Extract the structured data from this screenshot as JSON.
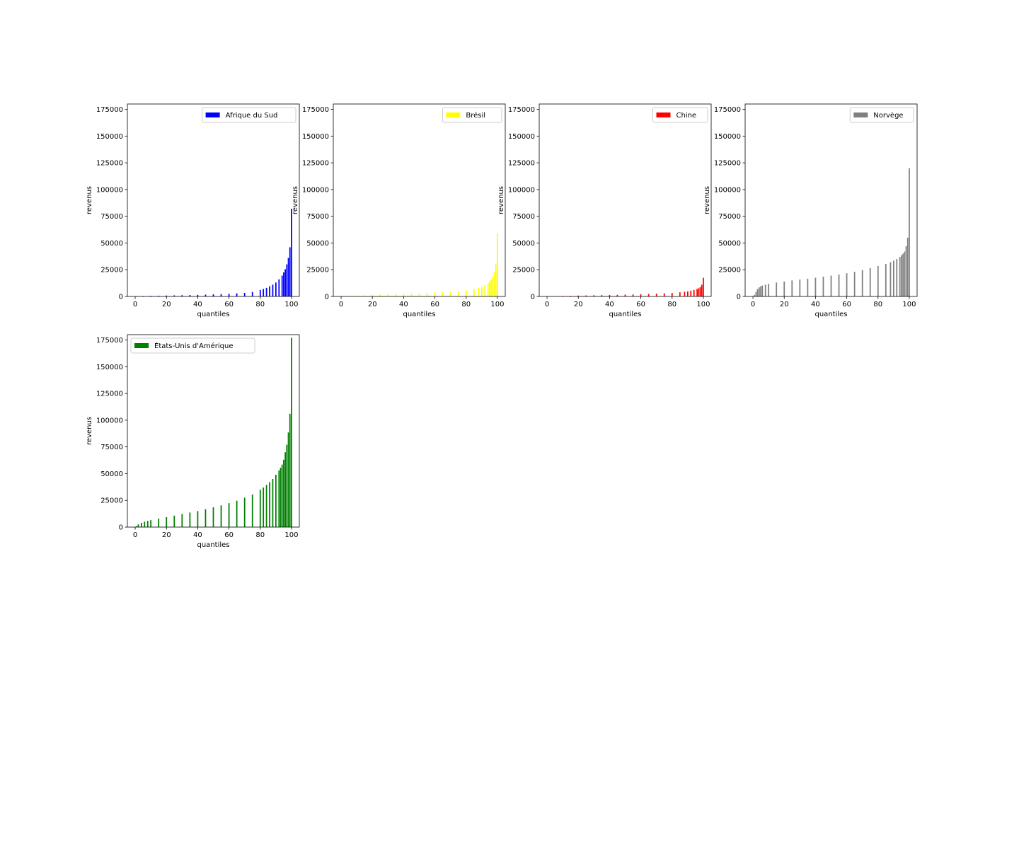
{
  "chart_data": [
    {
      "type": "bar",
      "legend": "Afrique du Sud",
      "color": "#0000ff",
      "xlabel": "quantiles",
      "ylabel": "revenus",
      "xlim": [
        -5,
        105
      ],
      "ylim": [
        0,
        180000
      ],
      "xticks": [
        "0",
        "20",
        "40",
        "60",
        "80",
        "100"
      ],
      "yticks": [
        "0",
        "25000",
        "50000",
        "75000",
        "100000",
        "125000",
        "150000",
        "175000"
      ],
      "legend_position": "top-right",
      "x": [
        1,
        5,
        10,
        15,
        20,
        25,
        30,
        35,
        40,
        45,
        50,
        55,
        60,
        65,
        70,
        75,
        80,
        82,
        84,
        86,
        88,
        90,
        92,
        94,
        95,
        96,
        97,
        98,
        99,
        100
      ],
      "values": [
        300,
        450,
        600,
        700,
        850,
        1000,
        1150,
        1300,
        1500,
        1700,
        1950,
        2200,
        2500,
        2900,
        3300,
        4200,
        6000,
        7000,
        8000,
        9500,
        11000,
        13000,
        16000,
        19500,
        22500,
        25500,
        30000,
        36000,
        46000,
        82000
      ]
    },
    {
      "type": "bar",
      "legend": "Brésil",
      "color": "#ffff00",
      "xlabel": "quantiles",
      "ylabel": "revenus",
      "xlim": [
        -5,
        105
      ],
      "ylim": [
        0,
        180000
      ],
      "xticks": [
        "0",
        "20",
        "40",
        "60",
        "80",
        "100"
      ],
      "yticks": [
        "0",
        "25000",
        "50000",
        "75000",
        "100000",
        "125000",
        "150000",
        "175000"
      ],
      "legend_position": "top-right",
      "x": [
        1,
        5,
        10,
        15,
        20,
        25,
        30,
        35,
        40,
        45,
        50,
        55,
        60,
        65,
        70,
        75,
        80,
        85,
        88,
        90,
        92,
        94,
        95,
        96,
        97,
        98,
        99,
        100
      ],
      "values": [
        200,
        500,
        800,
        1100,
        1400,
        1700,
        1950,
        2200,
        2450,
        2700,
        3000,
        3300,
        3650,
        4050,
        4500,
        5100,
        5900,
        7000,
        8000,
        9000,
        10500,
        12500,
        14000,
        16000,
        18500,
        22500,
        30000,
        59000
      ]
    },
    {
      "type": "bar",
      "legend": "Chine",
      "color": "#ff0000",
      "xlabel": "quantiles",
      "ylabel": "revenus",
      "xlim": [
        -5,
        105
      ],
      "ylim": [
        0,
        180000
      ],
      "xticks": [
        "0",
        "20",
        "40",
        "60",
        "80",
        "100"
      ],
      "yticks": [
        "0",
        "25000",
        "50000",
        "75000",
        "100000",
        "125000",
        "150000",
        "175000"
      ],
      "legend_position": "top-right",
      "x": [
        1,
        5,
        10,
        15,
        20,
        25,
        30,
        35,
        40,
        45,
        50,
        55,
        60,
        65,
        70,
        75,
        80,
        85,
        88,
        90,
        92,
        94,
        96,
        97,
        98,
        99,
        100
      ],
      "values": [
        200,
        350,
        500,
        650,
        800,
        950,
        1100,
        1250,
        1400,
        1550,
        1700,
        1900,
        2100,
        2350,
        2600,
        2900,
        3300,
        3900,
        4400,
        4800,
        5400,
        6100,
        7000,
        7700,
        8600,
        11000,
        17500
      ]
    },
    {
      "type": "bar",
      "legend": "Norvège",
      "color": "#808080",
      "xlabel": "quantiles",
      "ylabel": "revenus",
      "xlim": [
        -5,
        105
      ],
      "ylim": [
        0,
        180000
      ],
      "xticks": [
        "0",
        "20",
        "40",
        "60",
        "80",
        "100"
      ],
      "yticks": [
        "0",
        "25000",
        "50000",
        "75000",
        "100000",
        "125000",
        "150000",
        "175000"
      ],
      "legend_position": "top-right",
      "x": [
        1,
        2,
        3,
        4,
        5,
        6,
        8,
        10,
        15,
        20,
        25,
        30,
        35,
        40,
        45,
        50,
        55,
        60,
        65,
        70,
        75,
        80,
        85,
        88,
        90,
        92,
        94,
        95,
        96,
        97,
        98,
        99,
        100
      ],
      "values": [
        1500,
        4500,
        7000,
        8500,
        9500,
        10200,
        11000,
        11800,
        13000,
        14000,
        15000,
        15800,
        16600,
        17500,
        18500,
        19500,
        20500,
        21700,
        23000,
        24700,
        26500,
        28500,
        30500,
        32000,
        33500,
        35000,
        37000,
        38500,
        40000,
        42000,
        47000,
        55000,
        120000
      ]
    },
    {
      "type": "bar",
      "legend": "États-Unis d'Amérique",
      "color": "#008000",
      "xlabel": "quantiles",
      "ylabel": "revenus",
      "xlim": [
        -5,
        105
      ],
      "ylim": [
        0,
        180000
      ],
      "xticks": [
        "0",
        "20",
        "40",
        "60",
        "80",
        "100"
      ],
      "yticks": [
        "0",
        "25000",
        "50000",
        "75000",
        "100000",
        "125000",
        "150000",
        "175000"
      ],
      "legend_position": "top-left",
      "x": [
        1,
        2,
        4,
        6,
        8,
        10,
        15,
        20,
        25,
        30,
        35,
        40,
        45,
        50,
        55,
        60,
        65,
        70,
        75,
        80,
        82,
        84,
        86,
        88,
        90,
        92,
        93,
        94,
        95,
        96,
        97,
        98,
        99,
        100
      ],
      "values": [
        1000,
        2500,
        4000,
        5000,
        5800,
        6500,
        8000,
        9300,
        10700,
        12200,
        13600,
        15000,
        16700,
        18500,
        20300,
        22400,
        24700,
        27500,
        30500,
        35000,
        37000,
        39500,
        42000,
        45000,
        49000,
        53000,
        55500,
        58500,
        63000,
        70000,
        77000,
        88500,
        106000,
        177000
      ]
    }
  ]
}
